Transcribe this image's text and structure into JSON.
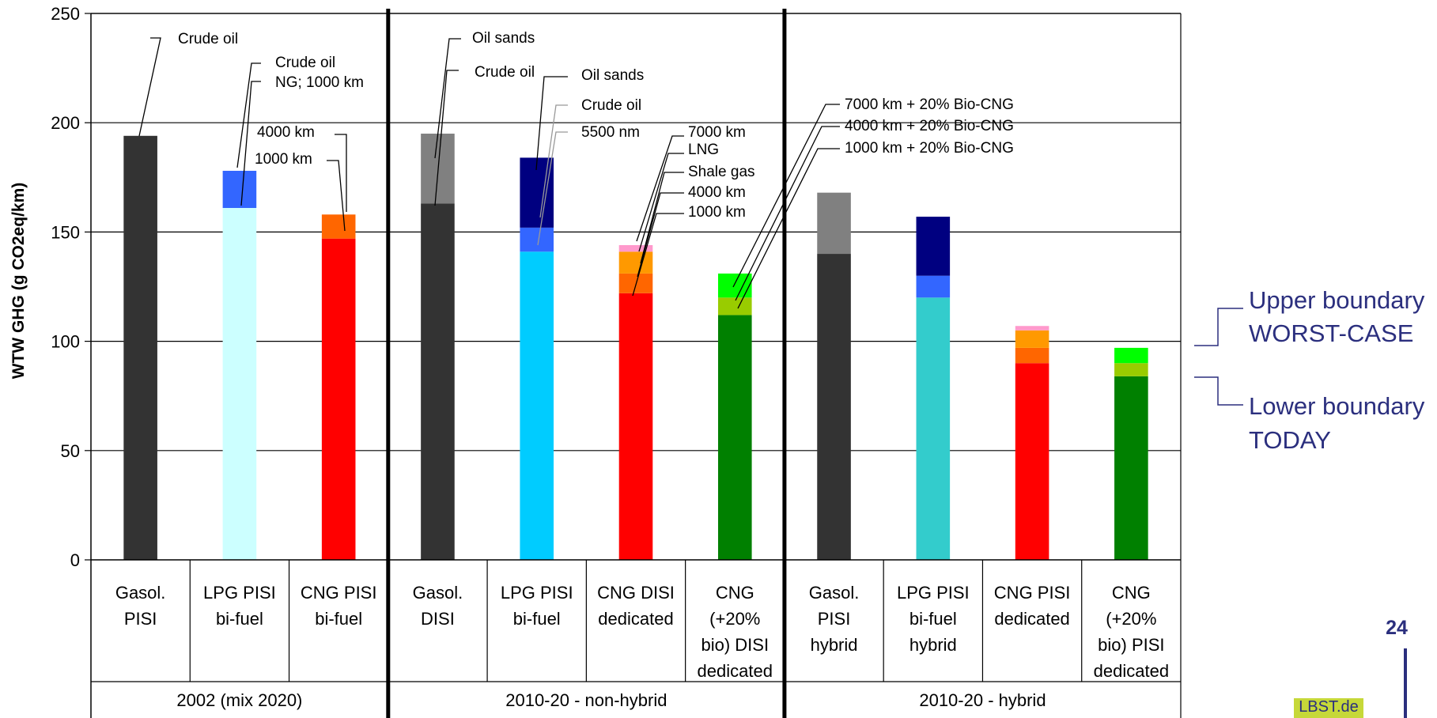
{
  "chart_data": {
    "type": "bar",
    "stacked": true,
    "ylabel": "WTW GHG (g CO2eq/km)",
    "ylim": [
      0,
      250
    ],
    "yticks": [
      0,
      50,
      100,
      150,
      200,
      250
    ],
    "grid": true,
    "groups": [
      {
        "label": "2002 (mix 2020)",
        "categories": [
          "Gasol. PISI",
          "LPG PISI bi-fuel",
          "CNG PISI bi-fuel"
        ]
      },
      {
        "label": "2010-20 - non-hybrid",
        "categories": [
          "Gasol. DISI",
          "LPG PISI bi-fuel",
          "CNG DISI dedicated",
          "CNG (+20% bio) DISI dedicated"
        ]
      },
      {
        "label": "2010-20 - hybrid",
        "categories": [
          "Gasol. PISI hybrid",
          "LPG PISI bi-fuel hybrid",
          "CNG PISI dedicated",
          "CNG (+20% bio) PISI dedicated"
        ]
      }
    ],
    "bars": [
      {
        "category": [
          "Gasol.",
          "PISI"
        ],
        "segments": [
          {
            "value": 194,
            "color": "#333333"
          }
        ]
      },
      {
        "category": [
          "LPG PISI",
          "bi-fuel"
        ],
        "segments": [
          {
            "value": 161,
            "color": "#ccffff"
          },
          {
            "value": 17,
            "color": "#3366ff"
          }
        ]
      },
      {
        "category": [
          "CNG PISI",
          "bi-fuel"
        ],
        "segments": [
          {
            "value": 147,
            "color": "#ff0000"
          },
          {
            "value": 11,
            "color": "#ff6600"
          }
        ]
      },
      {
        "category": [
          "Gasol.",
          "DISI"
        ],
        "segments": [
          {
            "value": 163,
            "color": "#333333"
          },
          {
            "value": 32,
            "color": "#808080"
          }
        ]
      },
      {
        "category": [
          "LPG PISI",
          "bi-fuel"
        ],
        "segments": [
          {
            "value": 141,
            "color": "#00ccff"
          },
          {
            "value": 11,
            "color": "#3366ff"
          },
          {
            "value": 32,
            "color": "#000080"
          }
        ]
      },
      {
        "category": [
          "CNG DISI",
          "dedicated"
        ],
        "segments": [
          {
            "value": 122,
            "color": "#ff0000"
          },
          {
            "value": 9,
            "color": "#ff6600"
          },
          {
            "value": 10,
            "color": "#ff9900"
          },
          {
            "value": 3,
            "color": "#ff99cc"
          }
        ]
      },
      {
        "category": [
          "CNG",
          "(+20%",
          "bio) DISI",
          "dedicated"
        ],
        "segments": [
          {
            "value": 112,
            "color": "#008000"
          },
          {
            "value": 8,
            "color": "#99cc00"
          },
          {
            "value": 11,
            "color": "#00ff00"
          }
        ]
      },
      {
        "category": [
          "Gasol.",
          "PISI",
          "hybrid"
        ],
        "segments": [
          {
            "value": 140,
            "color": "#333333"
          },
          {
            "value": 28,
            "color": "#808080"
          }
        ]
      },
      {
        "category": [
          "LPG PISI",
          "bi-fuel",
          "hybrid"
        ],
        "segments": [
          {
            "value": 120,
            "color": "#33cccc"
          },
          {
            "value": 10,
            "color": "#3366ff"
          },
          {
            "value": 27,
            "color": "#000080"
          }
        ]
      },
      {
        "category": [
          "CNG PISI",
          "dedicated"
        ],
        "segments": [
          {
            "value": 90,
            "color": "#ff0000"
          },
          {
            "value": 7,
            "color": "#ff6600"
          },
          {
            "value": 8,
            "color": "#ff9900"
          },
          {
            "value": 2,
            "color": "#ff99cc"
          }
        ]
      },
      {
        "category": [
          "CNG",
          "(+20%",
          "bio) PISI",
          "dedicated"
        ],
        "segments": [
          {
            "value": 84,
            "color": "#008000"
          },
          {
            "value": 6,
            "color": "#99cc00"
          },
          {
            "value": 7,
            "color": "#00ff00"
          }
        ]
      }
    ],
    "annotations": [
      "Crude oil",
      "Crude oil",
      "NG; 1000 km",
      "4000 km",
      "1000 km",
      "Oil sands",
      "Crude oil",
      "Oil sands",
      "Crude oil",
      "5500 nm",
      "7000 km",
      "LNG",
      "Shale gas",
      "4000 km",
      "1000 km",
      "7000 km + 20% Bio-CNG",
      "4000 km + 20% Bio-CNG",
      "1000 km + 20% Bio-CNG"
    ]
  },
  "boundaries": {
    "upper_line1": "Upper boundary",
    "upper_line2": "WORST-CASE",
    "lower_line1": "Lower boundary",
    "lower_line2": "TODAY"
  },
  "page_number": "24",
  "logo_text": "LBST.de"
}
